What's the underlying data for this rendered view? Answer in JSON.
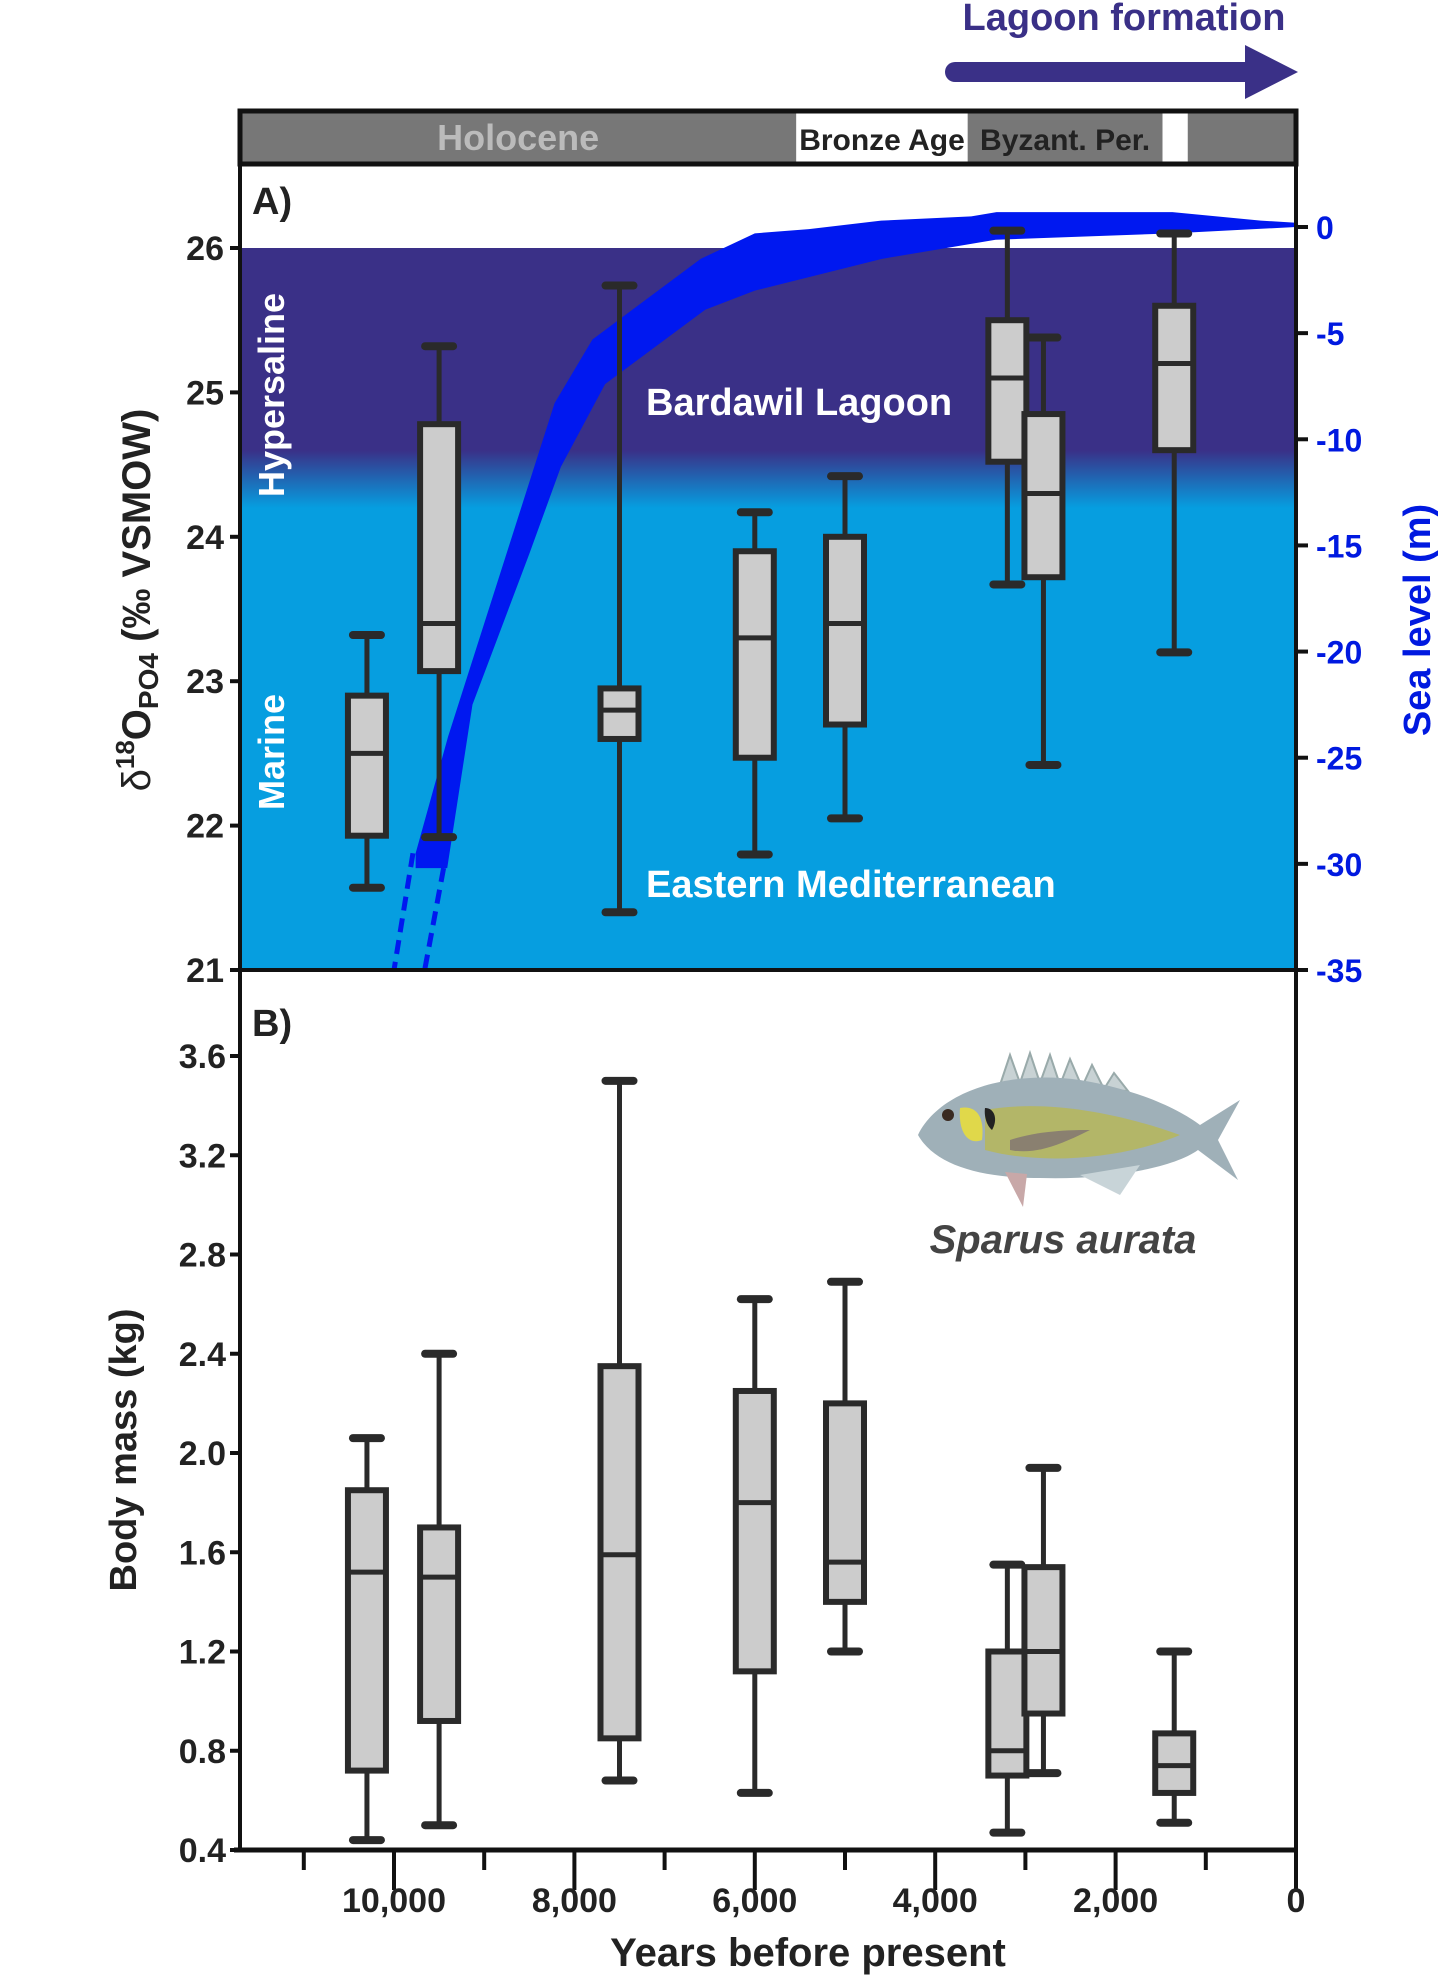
{
  "chart_data": [
    {
      "panel_label": "A)",
      "type": "box",
      "ylabel": {
        "main": "δ",
        "sup": "18",
        "o": "O",
        "sub": "PO4",
        "rest": " (‰ VSMOW)"
      },
      "ylim": [
        21,
        26.6
      ],
      "yticks": [
        21,
        22,
        23,
        24,
        25,
        26
      ],
      "xlabel": "",
      "x_reversed": true,
      "boxes": [
        {
          "x": 10300,
          "min": 21.57,
          "q1": 21.93,
          "median": 22.5,
          "q3": 22.9,
          "max": 23.32
        },
        {
          "x": 9500,
          "min": 21.92,
          "q1": 23.07,
          "median": 23.4,
          "q3": 24.78,
          "max": 25.32
        },
        {
          "x": 7500,
          "min": 21.4,
          "q1": 22.6,
          "median": 22.8,
          "q3": 22.95,
          "max": 25.74
        },
        {
          "x": 6000,
          "min": 21.8,
          "q1": 22.47,
          "median": 23.3,
          "q3": 23.9,
          "max": 24.17
        },
        {
          "x": 5000,
          "min": 22.05,
          "q1": 22.7,
          "median": 23.4,
          "q3": 24.0,
          "max": 24.42
        },
        {
          "x": 3200,
          "min": 23.67,
          "q1": 24.52,
          "median": 25.1,
          "q3": 25.5,
          "max": 26.12
        },
        {
          "x": 2800,
          "min": 22.42,
          "q1": 23.72,
          "median": 24.3,
          "q3": 24.85,
          "max": 25.38
        },
        {
          "x": 1350,
          "min": 23.2,
          "q1": 24.6,
          "median": 25.2,
          "q3": 25.6,
          "max": 26.1
        }
      ],
      "secondary_axis": {
        "label": "Sea level (m)",
        "ylim": [
          -35,
          1
        ],
        "yticks": [
          0,
          -5,
          -10,
          -15,
          -20,
          -25,
          -30,
          -35
        ],
        "color": "#0019e0",
        "band_upper": [
          [
            9760,
            -29.5
          ],
          [
            9400,
            -24
          ],
          [
            8220,
            -8.3
          ],
          [
            7800,
            -5.3
          ],
          [
            6600,
            -1.5
          ],
          [
            6000,
            -0.3
          ],
          [
            5400,
            -0.1
          ],
          [
            4600,
            0.3
          ],
          [
            3600,
            0.5
          ],
          [
            3320,
            0.7
          ],
          [
            1370,
            0.7
          ],
          [
            390,
            0.3
          ],
          [
            0,
            0.2
          ]
        ],
        "band_lower": [
          [
            0,
            0
          ],
          [
            1370,
            -0.3
          ],
          [
            3330,
            -0.6
          ],
          [
            4590,
            -1.5
          ],
          [
            6000,
            -3
          ],
          [
            6550,
            -3.9
          ],
          [
            7660,
            -7.4
          ],
          [
            8150,
            -11.3
          ],
          [
            8500,
            -15.4
          ],
          [
            9130,
            -22.5
          ],
          [
            9410,
            -30.2
          ],
          [
            9760,
            -30.2
          ]
        ],
        "dashed_extension": [
          [
            [
              9790,
              -29.5
            ],
            [
              10000,
              -35
            ]
          ],
          [
            [
              9450,
              -30.2
            ],
            [
              9660,
              -35
            ]
          ]
        ],
        "band_color": "#0018f0"
      },
      "zones": [
        {
          "label": "Hypersaline",
          "from": 24.2,
          "to": 26,
          "color": "#3a3087"
        },
        {
          "label": "Marine",
          "from": 21,
          "to": 23.8,
          "color": "#069ee0"
        }
      ],
      "annotations": [
        "Bardawil Lagoon",
        "Eastern Mediterranean"
      ]
    },
    {
      "panel_label": "B)",
      "type": "box",
      "ylabel": "Body mass (kg)",
      "ylim": [
        0.4,
        3.8
      ],
      "yticks": [
        0.4,
        0.8,
        1.2,
        1.6,
        2.0,
        2.4,
        2.8,
        3.2,
        3.6
      ],
      "xlabel": "Years before present",
      "xlim": [
        11710,
        0
      ],
      "xticks": [
        10000,
        8000,
        6000,
        4000,
        2000,
        0
      ],
      "xtick_labels": [
        "10,000",
        "8,000",
        "6,000",
        "4,000",
        "2,000",
        "0"
      ],
      "boxes": [
        {
          "x": 10300,
          "min": 0.44,
          "q1": 0.72,
          "median": 1.52,
          "q3": 1.85,
          "max": 2.06
        },
        {
          "x": 9500,
          "min": 0.5,
          "q1": 0.92,
          "median": 1.5,
          "q3": 1.7,
          "max": 2.4
        },
        {
          "x": 7500,
          "min": 0.68,
          "q1": 0.85,
          "median": 1.59,
          "q3": 2.35,
          "max": 3.5
        },
        {
          "x": 6000,
          "min": 0.63,
          "q1": 1.12,
          "median": 1.8,
          "q3": 2.25,
          "max": 2.62
        },
        {
          "x": 5000,
          "min": 1.2,
          "q1": 1.4,
          "median": 1.56,
          "q3": 2.2,
          "max": 2.69
        },
        {
          "x": 3200,
          "min": 0.47,
          "q1": 0.7,
          "median": 0.8,
          "q3": 1.2,
          "max": 1.55
        },
        {
          "x": 2800,
          "min": 0.71,
          "q1": 0.95,
          "median": 1.2,
          "q3": 1.54,
          "max": 1.94
        },
        {
          "x": 1350,
          "min": 0.51,
          "q1": 0.63,
          "median": 0.74,
          "q3": 0.87,
          "max": 1.2
        }
      ],
      "species_label": "Sparus aurata"
    }
  ],
  "periods": [
    {
      "label": "Holocene",
      "from": 11710,
      "to": 5540,
      "fill": "#777777",
      "text_color": "#bbbbbb"
    },
    {
      "label": "Bronze Age",
      "from": 5540,
      "to": 3640,
      "fill": "#ffffff",
      "text_color": "#222222"
    },
    {
      "label": "Byzant. Per.",
      "from": 3640,
      "to": 1480,
      "fill": "#777777",
      "text_color": "#222222"
    },
    {
      "label": "",
      "from": 1480,
      "to": 1200,
      "fill": "#ffffff",
      "text_color": "#222222"
    },
    {
      "label": "",
      "from": 1200,
      "to": 0,
      "fill": "#777777",
      "text_color": "#222222"
    }
  ],
  "top_arrow": {
    "label": "Lagoon formation",
    "color": "#3a3087"
  },
  "colors": {
    "box_fill": "#cccccc",
    "box_stroke": "#2a2a2a"
  }
}
